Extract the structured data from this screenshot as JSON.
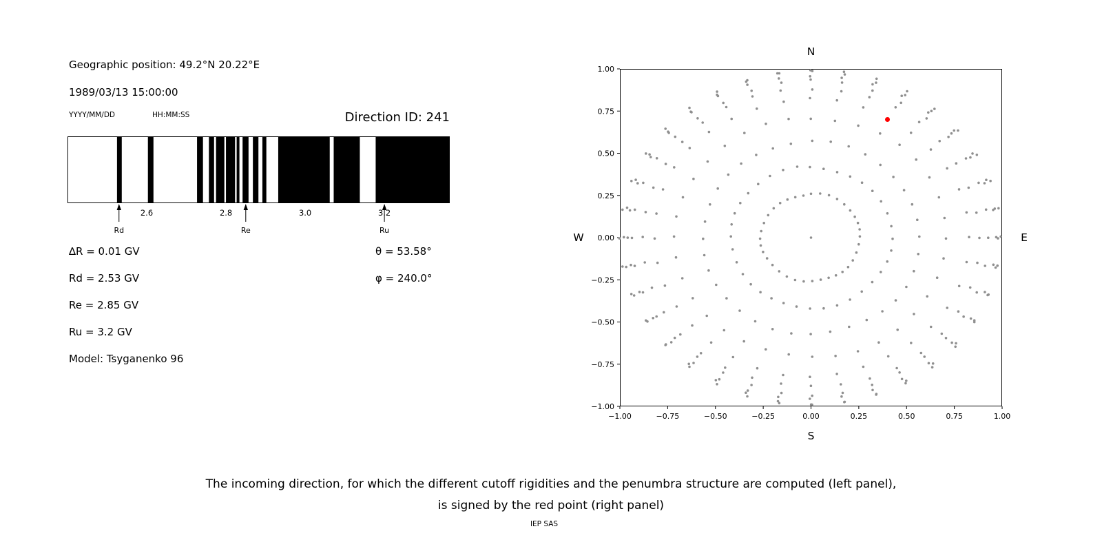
{
  "left_panel": {
    "geo_position": "Geographic position: 49.2°N 20.22°E",
    "datetime": "1989/03/13 15:00:00",
    "date_format_label": "YYYY/MM/DD",
    "time_format_label": "HH:MM:SS",
    "direction_id": "Direction ID: 241",
    "params": [
      "∆R = 0.01 GV",
      "Rd = 2.53 GV",
      "Re = 2.85 GV",
      "Ru = 3.2 GV",
      "Model: Tsyganenko 96"
    ],
    "angles": [
      "θ = 53.58°",
      "φ = 240.0°"
    ]
  },
  "caption": {
    "line1": "The incoming direction, for which the different cutoff rigidities and the penumbra structure are computed (left panel),",
    "line2": "is signed by the red point (right panel)"
  },
  "footer": "IEP SAS",
  "chart_data": [
    {
      "type": "band",
      "name": "penumbra-structure",
      "xlabel_units": "GV",
      "xlim": [
        2.4,
        3.365
      ],
      "ticks": [
        2.6,
        2.8,
        3.0,
        3.2
      ],
      "tick_labels": [
        "2.6",
        "2.8",
        "3.0",
        "3.2"
      ],
      "band_color": "#000000",
      "forbidden_bands_gv": [
        [
          2.525,
          2.537
        ],
        [
          2.603,
          2.617
        ],
        [
          2.727,
          2.742
        ],
        [
          2.757,
          2.77
        ],
        [
          2.775,
          2.796
        ],
        [
          2.8,
          2.823
        ],
        [
          2.827,
          2.834
        ],
        [
          2.842,
          2.857
        ],
        [
          2.868,
          2.882
        ],
        [
          2.892,
          2.902
        ],
        [
          2.932,
          3.062
        ],
        [
          3.072,
          3.138
        ],
        [
          3.178,
          3.365
        ]
      ],
      "markers": [
        {
          "label": "Rd",
          "value": 2.53
        },
        {
          "label": "Re",
          "value": 2.85
        },
        {
          "label": "Ru",
          "value": 3.2
        }
      ],
      "delta_r_gv": 0.01
    },
    {
      "type": "scatter",
      "name": "direction-grid",
      "xlim": [
        -1.0,
        1.0
      ],
      "ylim": [
        -1.0,
        1.0
      ],
      "x_ticks": [
        -1.0,
        -0.75,
        -0.5,
        -0.25,
        0.0,
        0.25,
        0.5,
        0.75,
        1.0
      ],
      "x_tick_labels": [
        "−1.00",
        "−0.75",
        "−0.50",
        "−0.25",
        "0.00",
        "0.25",
        "0.50",
        "0.75",
        "1.00"
      ],
      "y_ticks": [
        -1.0,
        -0.75,
        -0.5,
        -0.25,
        0.0,
        0.25,
        0.5,
        0.75,
        1.0
      ],
      "y_tick_labels": [
        "−1.00",
        "−0.75",
        "−0.50",
        "−0.25",
        "0.00",
        "0.25",
        "0.50",
        "0.75",
        "1.00"
      ],
      "cardinal_labels": {
        "top": "N",
        "bottom": "S",
        "left": "W",
        "right": "E"
      },
      "point_color": "#8f8f8f",
      "grid": {
        "azimuth_start_deg": 0,
        "azimuth_step_deg": 10,
        "azimuth_count": 36,
        "ring_radii": [
          0.26,
          0.42,
          0.57,
          0.71,
          0.82,
          0.885,
          0.93,
          0.962,
          0.983,
          0.995
        ],
        "include_center_point": true
      },
      "red_point": {
        "x": 0.4,
        "y": 0.7,
        "color": "#ff0000"
      }
    }
  ]
}
